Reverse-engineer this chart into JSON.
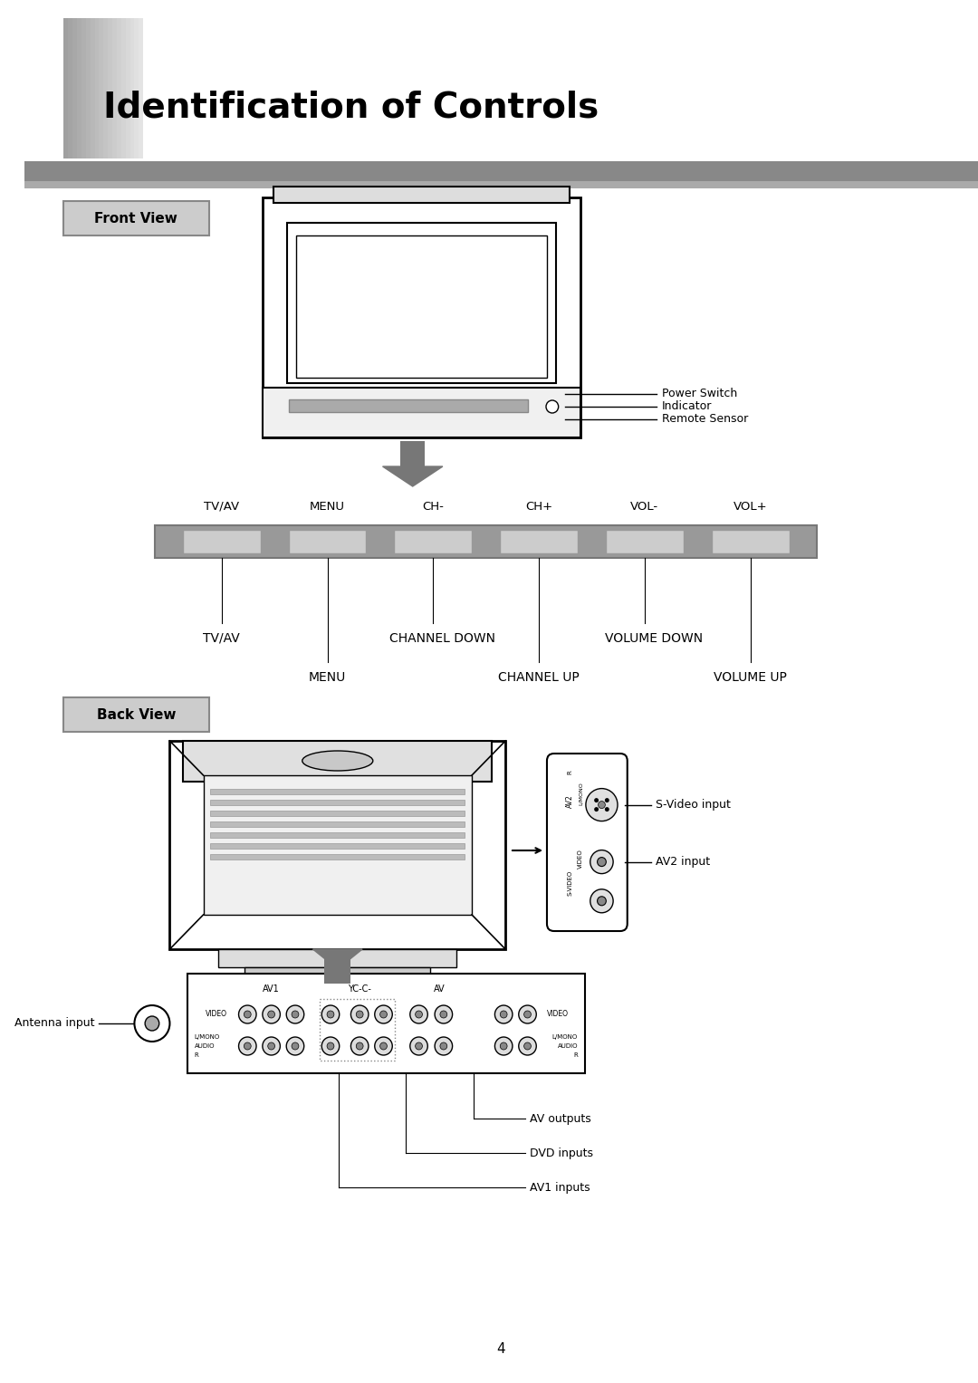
{
  "title": "Identification of Controls",
  "front_view_label": "Front View",
  "back_view_label": "Back View",
  "button_labels_top": [
    "TV/AV",
    "MENU",
    "CH-",
    "CH+",
    "VOL-",
    "VOL+"
  ],
  "front_annotations": [
    "Power Switch",
    "Indicator",
    "Remote Sensor"
  ],
  "back_right_annotations": [
    "S-Video input",
    "AV2 input"
  ],
  "back_bottom_annotations": [
    "AV outputs",
    "DVD inputs",
    "AV1 inputs"
  ],
  "back_left_annotation": "Antenna input",
  "page_number": "4",
  "bg_color": "#ffffff"
}
